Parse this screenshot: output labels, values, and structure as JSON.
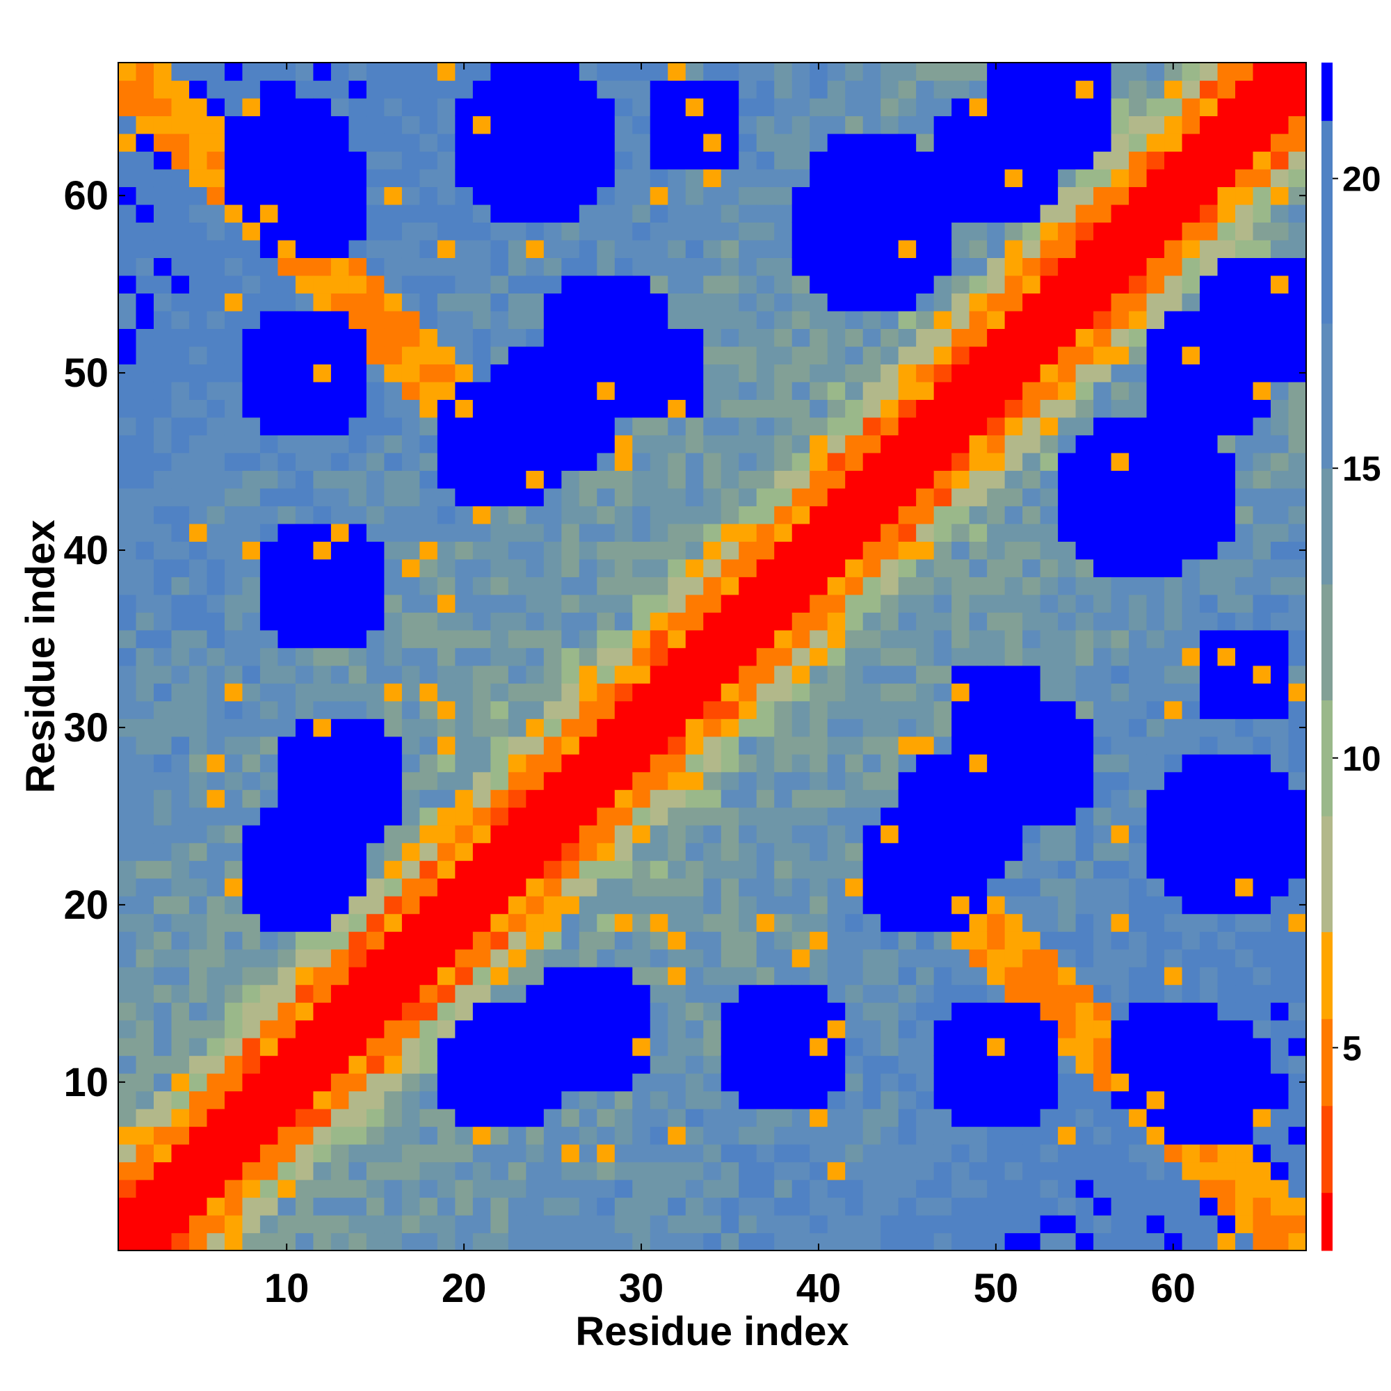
{
  "chart_data": {
    "type": "heatmap",
    "xlabel": "Residue index",
    "ylabel": "Residue index",
    "n": 67,
    "xlim": [
      0.5,
      67.5
    ],
    "ylim": [
      0.5,
      67.5
    ],
    "x_ticks": [
      10,
      20,
      30,
      40,
      50,
      60
    ],
    "y_ticks": [
      10,
      20,
      30,
      40,
      50,
      60
    ],
    "colorbar": {
      "min": 1.5,
      "max": 22,
      "ticks": [
        5,
        10,
        15,
        20
      ]
    },
    "colormap": [
      {
        "to": 2.5,
        "color": "#ff0000"
      },
      {
        "to": 4.0,
        "color": "#ff4a00"
      },
      {
        "to": 5.5,
        "color": "#ff7a00"
      },
      {
        "to": 7.0,
        "color": "#ffa500"
      },
      {
        "to": 9.0,
        "color": "#b2b88a"
      },
      {
        "to": 11.0,
        "color": "#9ab88a"
      },
      {
        "to": 13.0,
        "color": "#82a096"
      },
      {
        "to": 15.0,
        "color": "#6e96a8"
      },
      {
        "to": 17.5,
        "color": "#5e8cbc"
      },
      {
        "to": 21.0,
        "color": "#5082c4"
      },
      {
        "to": 99,
        "color": "#0000ff"
      }
    ]
  }
}
